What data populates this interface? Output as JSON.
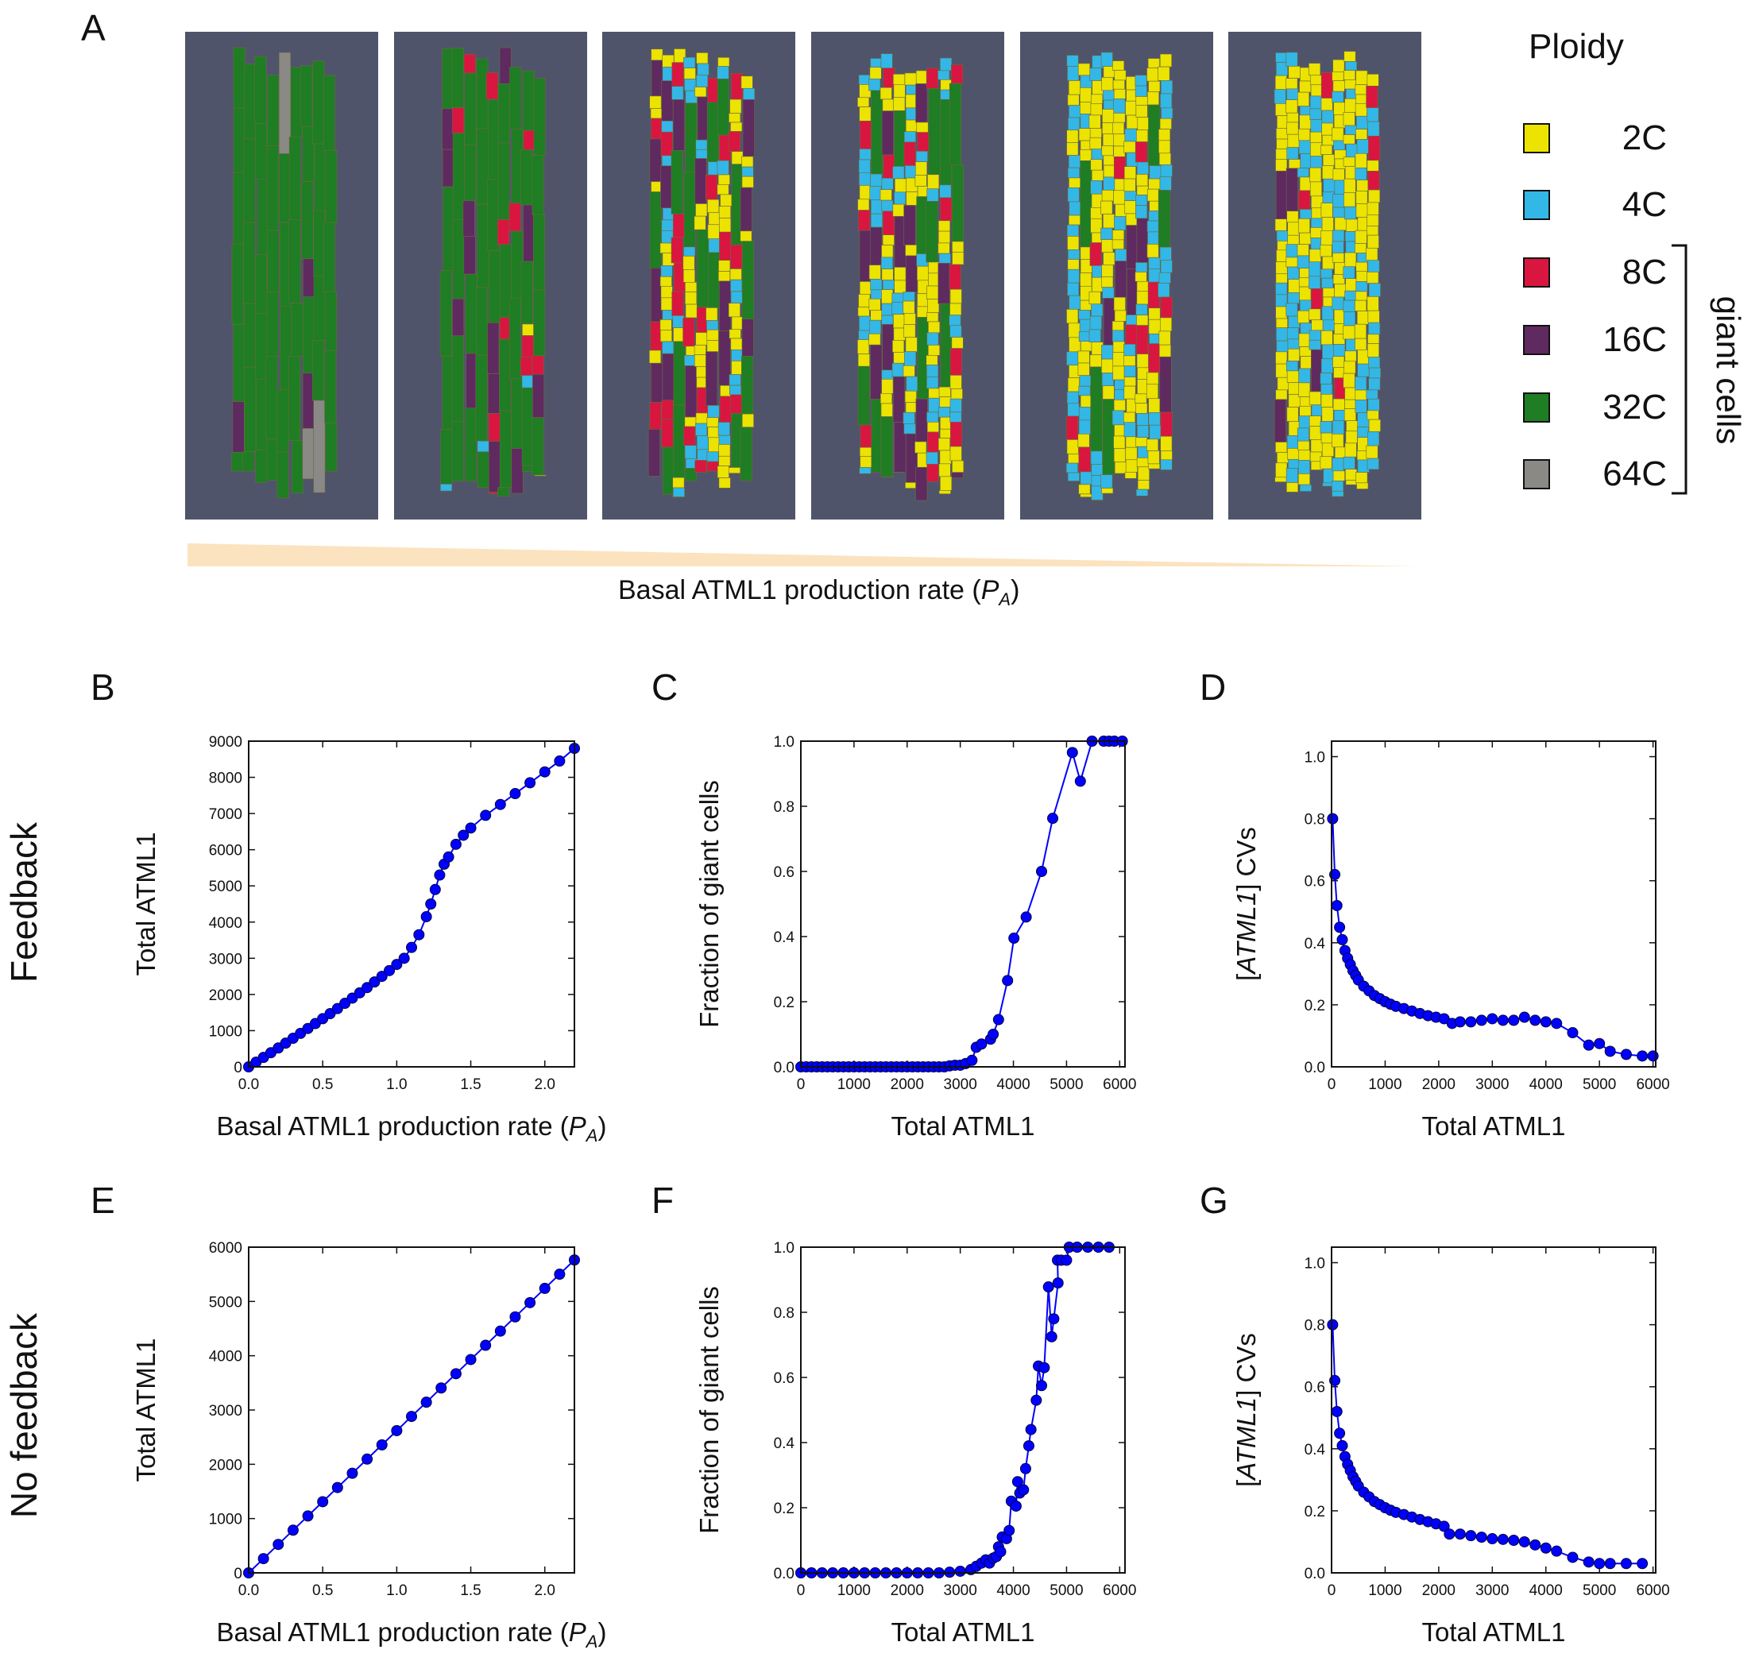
{
  "panel_labels": {
    "A": "A",
    "B": "B",
    "C": "C",
    "D": "D",
    "E": "E",
    "F": "F",
    "G": "G"
  },
  "row_labels": {
    "top": "Feedback",
    "bottom": "No feedback"
  },
  "panel_a": {
    "caption_main": "Basal ATML1 production rate (",
    "caption_sym": "P",
    "caption_sub": "A",
    "caption_end": ")",
    "gradient_color": "#fbe3c0",
    "background_color": "#50546a",
    "tissues": [
      {
        "mix": {
          "2C": 0.0,
          "4C": 0.0,
          "8C": 0.0,
          "16C": 0.08,
          "32C": 0.87,
          "64C": 0.05
        }
      },
      {
        "mix": {
          "2C": 0.05,
          "4C": 0.05,
          "8C": 0.15,
          "16C": 0.2,
          "32C": 0.55,
          "64C": 0.0
        }
      },
      {
        "mix": {
          "2C": 0.4,
          "4C": 0.25,
          "8C": 0.12,
          "16C": 0.1,
          "32C": 0.13,
          "64C": 0.0
        }
      },
      {
        "mix": {
          "2C": 0.45,
          "4C": 0.33,
          "8C": 0.08,
          "16C": 0.07,
          "32C": 0.07,
          "64C": 0.0
        }
      },
      {
        "mix": {
          "2C": 0.6,
          "4C": 0.3,
          "8C": 0.06,
          "16C": 0.02,
          "32C": 0.02,
          "64C": 0.0
        }
      },
      {
        "mix": {
          "2C": 0.62,
          "4C": 0.35,
          "8C": 0.02,
          "16C": 0.01,
          "32C": 0.0,
          "64C": 0.0
        }
      }
    ]
  },
  "legend": {
    "title": "Ploidy",
    "items": [
      {
        "label": "2C",
        "color": "#ece300"
      },
      {
        "label": "4C",
        "color": "#33b7e6"
      },
      {
        "label": "8C",
        "color": "#d9163f"
      },
      {
        "label": "16C",
        "color": "#5e2a5f"
      },
      {
        "label": "32C",
        "color": "#1f7d24"
      },
      {
        "label": "64C",
        "color": "#8a8986"
      }
    ],
    "bracket_label": "giant cells"
  },
  "chart_data": [
    {
      "id": "B",
      "type": "line",
      "series_color": "#0000ff",
      "xlabel_main": "Basal ATML1 production rate (",
      "xlabel_sym": "P",
      "xlabel_sub": "A",
      "xlabel_end": ")",
      "ylabel": "Total ATML1",
      "xlim": [
        0,
        2.2
      ],
      "ylim": [
        0,
        9000
      ],
      "xticks": [
        "0.0",
        "0.5",
        "1.0",
        "1.5",
        "2.0"
      ],
      "yticks": [
        "0",
        "1000",
        "2000",
        "3000",
        "4000",
        "5000",
        "6000",
        "7000",
        "8000",
        "9000"
      ],
      "x": [
        0,
        0.05,
        0.1,
        0.15,
        0.2,
        0.25,
        0.3,
        0.35,
        0.4,
        0.45,
        0.5,
        0.55,
        0.6,
        0.65,
        0.7,
        0.75,
        0.8,
        0.85,
        0.9,
        0.95,
        1.0,
        1.05,
        1.1,
        1.15,
        1.2,
        1.23,
        1.26,
        1.29,
        1.32,
        1.35,
        1.4,
        1.45,
        1.5,
        1.6,
        1.7,
        1.8,
        1.9,
        2.0,
        2.1,
        2.2
      ],
      "y": [
        0,
        130,
        260,
        390,
        520,
        655,
        790,
        925,
        1060,
        1195,
        1330,
        1470,
        1610,
        1755,
        1900,
        2045,
        2190,
        2345,
        2500,
        2660,
        2830,
        3000,
        3300,
        3650,
        4150,
        4500,
        4900,
        5300,
        5600,
        5800,
        6150,
        6400,
        6600,
        6950,
        7250,
        7550,
        7850,
        8150,
        8450,
        8800
      ]
    },
    {
      "id": "C",
      "type": "line",
      "series_color": "#0000ff",
      "xlabel": "Total ATML1",
      "ylabel": "Fraction of giant cells",
      "xlim": [
        0,
        6100
      ],
      "ylim": [
        0,
        1.0
      ],
      "xticks": [
        "0",
        "1000",
        "2000",
        "3000",
        "4000",
        "5000",
        "6000"
      ],
      "yticks": [
        "0.0",
        "0.2",
        "0.4",
        "0.6",
        "0.8",
        "1.0"
      ],
      "x": [
        0,
        100,
        200,
        300,
        400,
        500,
        600,
        700,
        800,
        900,
        1000,
        1100,
        1200,
        1300,
        1400,
        1500,
        1600,
        1700,
        1800,
        1900,
        2000,
        2100,
        2200,
        2300,
        2400,
        2500,
        2600,
        2700,
        2800,
        2900,
        3000,
        3100,
        3220,
        3300,
        3400,
        3570,
        3620,
        3720,
        3890,
        4010,
        4240,
        4530,
        4740,
        5110,
        5260,
        5480,
        5700,
        5800,
        5900,
        6050
      ],
      "y": [
        0,
        0,
        0,
        0,
        0,
        0,
        0,
        0,
        0,
        0,
        0,
        0,
        0,
        0,
        0,
        0,
        0,
        0,
        0,
        0,
        0,
        0,
        0,
        0,
        0,
        0,
        0,
        0,
        0.003,
        0.005,
        0.005,
        0.01,
        0.02,
        0.06,
        0.07,
        0.085,
        0.1,
        0.145,
        0.265,
        0.395,
        0.46,
        0.6,
        0.763,
        0.965,
        0.877,
        1.0,
        1.0,
        1.0,
        1.0,
        1.0
      ]
    },
    {
      "id": "D",
      "type": "line",
      "series_color": "#0000ff",
      "xlabel": "Total ATML1",
      "ylabel_prefix": "[",
      "ylabel_italic": "ATML1",
      "ylabel_suffix": "]   CVs",
      "xlim": [
        0,
        6050
      ],
      "ylim": [
        0,
        1.05
      ],
      "xticks": [
        "0",
        "1000",
        "2000",
        "3000",
        "4000",
        "5000",
        "6000"
      ],
      "yticks": [
        "0.0",
        "0.2",
        "0.4",
        "0.6",
        "0.8",
        "1.0"
      ],
      "x": [
        20,
        60,
        100,
        150,
        200,
        250,
        300,
        350,
        400,
        450,
        500,
        600,
        700,
        800,
        900,
        1000,
        1100,
        1200,
        1350,
        1500,
        1650,
        1800,
        1950,
        2100,
        2250,
        2400,
        2600,
        2800,
        3000,
        3200,
        3400,
        3600,
        3800,
        4000,
        4200,
        4500,
        4800,
        5000,
        5200,
        5500,
        5800,
        6000
      ],
      "y": [
        0.8,
        0.62,
        0.52,
        0.45,
        0.41,
        0.375,
        0.35,
        0.33,
        0.31,
        0.295,
        0.28,
        0.26,
        0.245,
        0.23,
        0.22,
        0.21,
        0.202,
        0.195,
        0.188,
        0.18,
        0.172,
        0.165,
        0.16,
        0.155,
        0.14,
        0.145,
        0.145,
        0.15,
        0.155,
        0.15,
        0.15,
        0.16,
        0.15,
        0.145,
        0.14,
        0.11,
        0.07,
        0.075,
        0.05,
        0.04,
        0.035,
        0.035
      ]
    },
    {
      "id": "E",
      "type": "line",
      "series_color": "#0000ff",
      "xlabel_main": "Basal ATML1 production rate  (",
      "xlabel_sym": "P",
      "xlabel_sub": "A",
      "xlabel_end": ")",
      "ylabel": "Total ATML1",
      "xlim": [
        0,
        2.2
      ],
      "ylim": [
        0,
        6000
      ],
      "xticks": [
        "0.0",
        "0.5",
        "1.0",
        "1.5",
        "2.0"
      ],
      "yticks": [
        "0",
        "1000",
        "2000",
        "3000",
        "4000",
        "5000",
        "6000"
      ],
      "x": [
        0,
        0.1,
        0.2,
        0.3,
        0.4,
        0.5,
        0.6,
        0.7,
        0.8,
        0.9,
        1.0,
        1.1,
        1.2,
        1.3,
        1.4,
        1.5,
        1.6,
        1.7,
        1.8,
        1.9,
        2.0,
        2.1,
        2.2
      ],
      "y": [
        0,
        262,
        524,
        786,
        1048,
        1310,
        1572,
        1834,
        2096,
        2358,
        2620,
        2882,
        3144,
        3406,
        3668,
        3930,
        4192,
        4454,
        4716,
        4978,
        5240,
        5502,
        5764
      ]
    },
    {
      "id": "F",
      "type": "line",
      "series_color": "#0000ff",
      "xlabel": "Total ATML1",
      "ylabel": "Fraction of giant cells",
      "xlim": [
        0,
        6100
      ],
      "ylim": [
        0,
        1.0
      ],
      "xticks": [
        "0",
        "1000",
        "2000",
        "3000",
        "4000",
        "5000",
        "6000"
      ],
      "yticks": [
        "0.0",
        "0.2",
        "0.4",
        "0.6",
        "0.8",
        "1.0"
      ],
      "x": [
        0,
        200,
        400,
        600,
        800,
        1000,
        1200,
        1400,
        1600,
        1800,
        2000,
        2200,
        2400,
        2600,
        2800,
        3000,
        3200,
        3300,
        3400,
        3480,
        3550,
        3620,
        3680,
        3720,
        3760,
        3790,
        3870,
        3920,
        3960,
        4050,
        4080,
        4120,
        4190,
        4230,
        4290,
        4330,
        4430,
        4470,
        4530,
        4580,
        4660,
        4720,
        4760,
        4840,
        4830,
        4900,
        5000,
        5050,
        5200,
        5400,
        5600,
        5800
      ],
      "y": [
        0,
        0,
        0,
        0,
        0,
        0,
        0,
        0,
        0,
        0,
        0,
        0,
        0,
        0,
        0.002,
        0.005,
        0.01,
        0.02,
        0.03,
        0.04,
        0.03,
        0.045,
        0.05,
        0.08,
        0.065,
        0.11,
        0.105,
        0.13,
        0.22,
        0.205,
        0.28,
        0.245,
        0.255,
        0.32,
        0.39,
        0.44,
        0.53,
        0.635,
        0.575,
        0.63,
        0.878,
        0.725,
        0.78,
        0.89,
        0.96,
        0.96,
        0.96,
        1.0,
        1.0,
        1.0,
        1.0,
        1.0
      ]
    },
    {
      "id": "G",
      "type": "line",
      "series_color": "#0000ff",
      "xlabel": "Total ATML1",
      "ylabel_prefix": "[",
      "ylabel_italic": "ATML1",
      "ylabel_suffix": "]   CVs",
      "xlim": [
        0,
        6050
      ],
      "ylim": [
        0,
        1.05
      ],
      "xticks": [
        "0",
        "1000",
        "2000",
        "3000",
        "4000",
        "5000",
        "6000"
      ],
      "yticks": [
        "0.0",
        "0.2",
        "0.4",
        "0.6",
        "0.8",
        "1.0"
      ],
      "x": [
        20,
        60,
        100,
        150,
        200,
        250,
        300,
        350,
        400,
        450,
        500,
        600,
        700,
        800,
        900,
        1000,
        1100,
        1200,
        1350,
        1500,
        1650,
        1800,
        1950,
        2100,
        2200,
        2400,
        2600,
        2800,
        3000,
        3200,
        3400,
        3600,
        3800,
        4000,
        4200,
        4500,
        4800,
        5000,
        5200,
        5500,
        5800
      ],
      "y": [
        0.8,
        0.62,
        0.52,
        0.45,
        0.41,
        0.375,
        0.35,
        0.33,
        0.31,
        0.295,
        0.28,
        0.26,
        0.245,
        0.23,
        0.22,
        0.21,
        0.202,
        0.195,
        0.188,
        0.18,
        0.172,
        0.165,
        0.158,
        0.15,
        0.125,
        0.125,
        0.12,
        0.115,
        0.11,
        0.108,
        0.105,
        0.1,
        0.09,
        0.08,
        0.07,
        0.05,
        0.035,
        0.03,
        0.03,
        0.03,
        0.03
      ]
    }
  ]
}
